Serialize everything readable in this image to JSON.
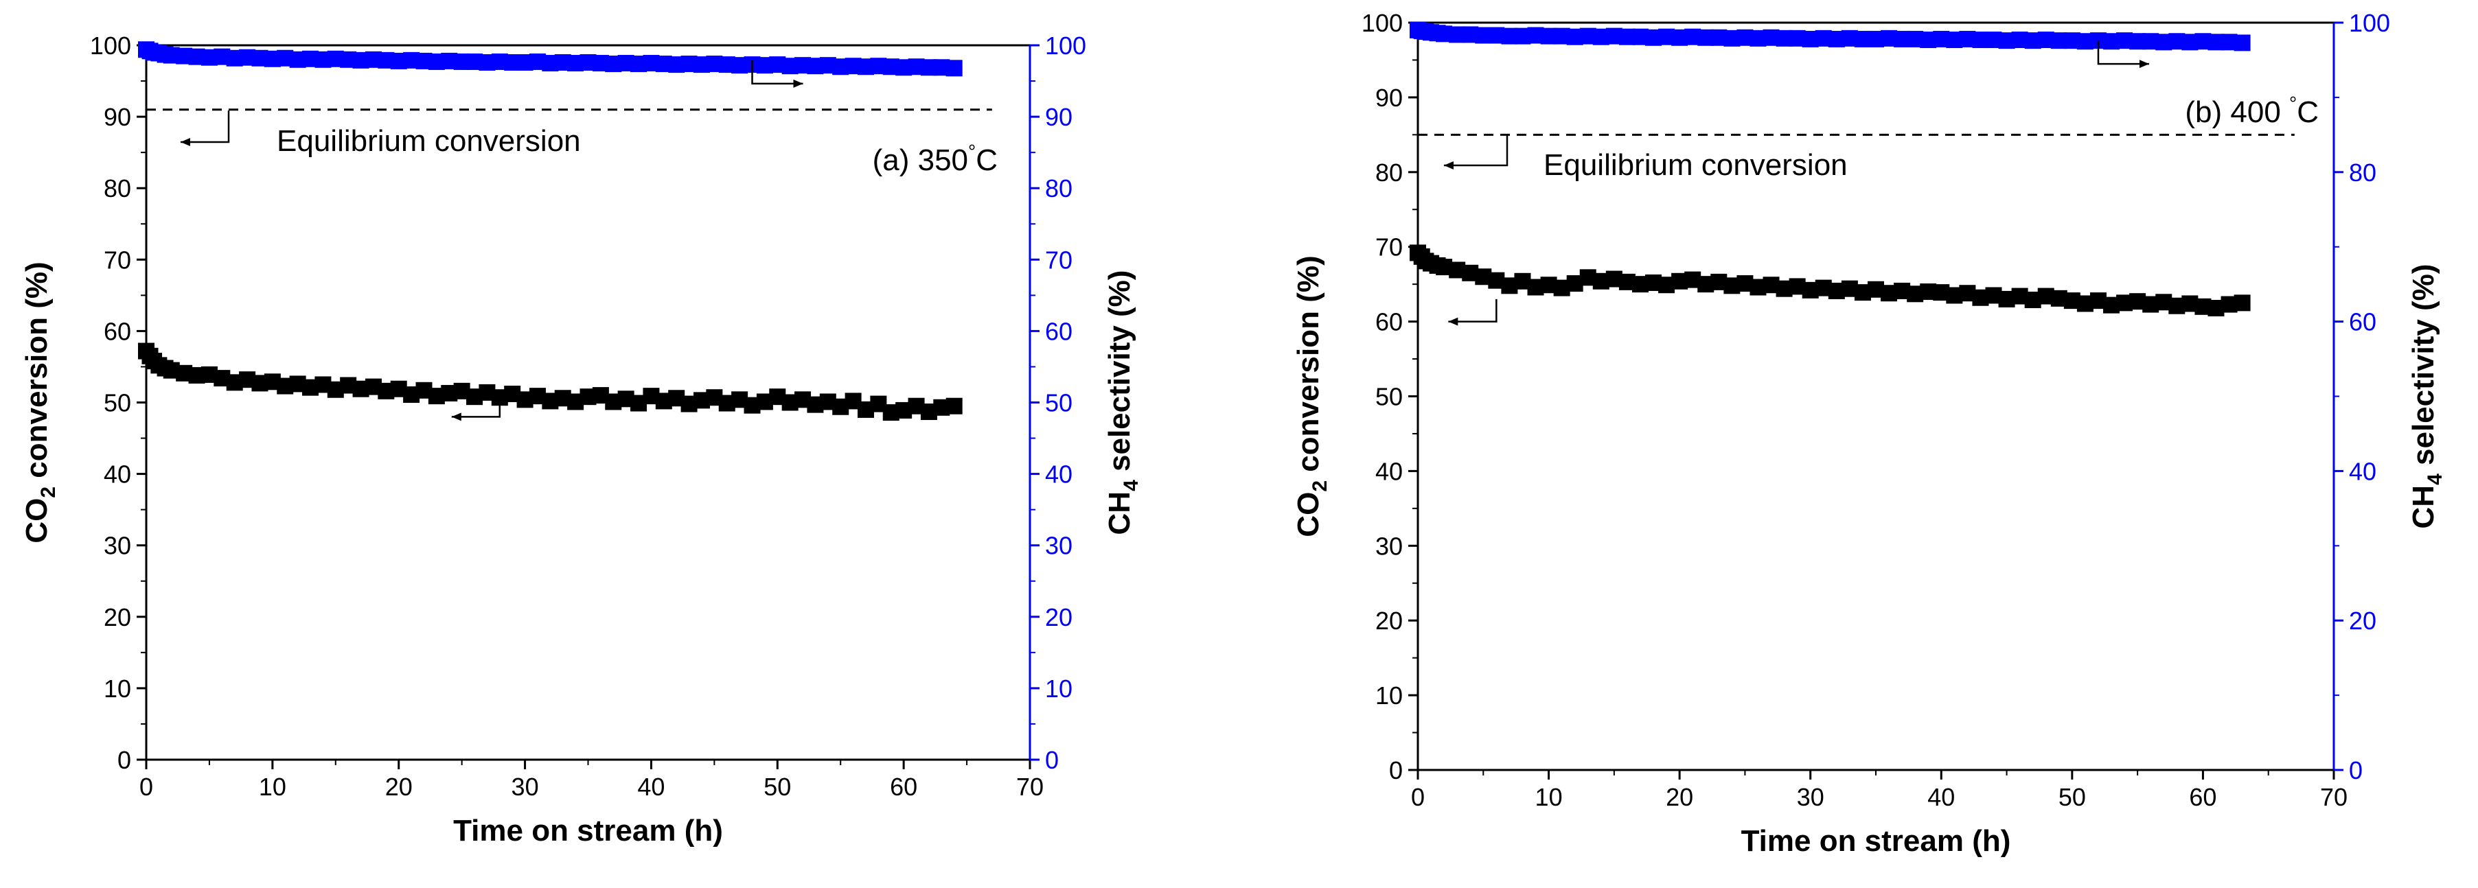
{
  "chart_data": [
    {
      "id": "a",
      "type": "scatter",
      "annotation": "(a) 350",
      "annotation_unit": "°C",
      "xlabel": "Time on stream (h)",
      "ylabel_left": {
        "prefix": "CO",
        "sub": "2",
        "suffix": " conversion (%)"
      },
      "ylabel_right": {
        "prefix": "CH",
        "sub": "4",
        "suffix": " selectivity (%)"
      },
      "xlim": [
        0,
        70
      ],
      "ylim_left": [
        0,
        100
      ],
      "ylim_right": [
        0,
        100
      ],
      "x_ticks": [
        0,
        10,
        20,
        30,
        40,
        50,
        60,
        70
      ],
      "y_ticks_left": [
        0,
        10,
        20,
        30,
        40,
        50,
        60,
        70,
        80,
        90,
        100
      ],
      "y_ticks_right": [
        0,
        10,
        20,
        30,
        40,
        50,
        60,
        70,
        80,
        90,
        100
      ],
      "equilibrium": {
        "label": "Equilibrium conversion",
        "value": 91,
        "x_range": [
          0,
          67
        ]
      },
      "series": [
        {
          "name": "CO2 conversion",
          "axis": "left",
          "color": "#000000",
          "x": [
            0,
            0.3,
            0.6,
            1,
            1.5,
            2,
            3,
            4,
            5,
            6,
            7,
            8,
            9,
            10,
            11,
            12,
            13,
            14,
            15,
            16,
            17,
            18,
            19,
            20,
            21,
            22,
            23,
            24,
            25,
            26,
            27,
            28,
            29,
            30,
            31,
            32,
            33,
            34,
            35,
            36,
            37,
            38,
            39,
            40,
            41,
            42,
            43,
            44,
            45,
            46,
            47,
            48,
            49,
            50,
            51,
            52,
            53,
            54,
            55,
            56,
            57,
            58,
            59,
            60,
            61,
            62,
            63,
            64
          ],
          "y": [
            57.2,
            56.5,
            55.8,
            55.2,
            54.8,
            54.5,
            54.1,
            53.8,
            53.9,
            53.4,
            52.8,
            53.2,
            52.7,
            52.9,
            52.3,
            52.6,
            52.1,
            52.5,
            51.8,
            52.4,
            51.9,
            52.2,
            51.6,
            51.9,
            51.1,
            51.7,
            50.9,
            51.3,
            51.6,
            50.8,
            51.4,
            50.7,
            51.2,
            50.4,
            50.9,
            50.2,
            50.6,
            50.1,
            50.8,
            51.0,
            50.1,
            50.5,
            49.9,
            50.9,
            50.2,
            50.6,
            49.8,
            50.3,
            50.7,
            49.9,
            50.4,
            49.6,
            50.1,
            50.8,
            50.0,
            50.4,
            49.7,
            50.1,
            49.4,
            50.2,
            49.0,
            49.8,
            48.6,
            48.9,
            49.5,
            48.7,
            49.3,
            49.5
          ]
        },
        {
          "name": "CH4 selectivity",
          "axis": "right",
          "color": "#0000ff",
          "x": [
            0,
            0.3,
            0.6,
            1,
            1.5,
            2,
            3,
            4,
            5,
            6,
            7,
            8,
            9,
            10,
            11,
            12,
            13,
            14,
            15,
            16,
            17,
            18,
            19,
            20,
            21,
            22,
            23,
            24,
            25,
            26,
            27,
            28,
            29,
            30,
            31,
            32,
            33,
            34,
            35,
            36,
            37,
            38,
            39,
            40,
            41,
            42,
            43,
            44,
            45,
            46,
            47,
            48,
            49,
            50,
            51,
            52,
            53,
            54,
            55,
            56,
            57,
            58,
            59,
            60,
            61,
            62,
            63,
            64
          ],
          "y": [
            99.4,
            99.2,
            99.0,
            98.9,
            98.7,
            98.6,
            98.5,
            98.4,
            98.3,
            98.4,
            98.2,
            98.3,
            98.2,
            98.1,
            98.2,
            98.0,
            98.1,
            98.0,
            98.1,
            98.0,
            97.9,
            98.0,
            97.9,
            97.8,
            97.9,
            97.8,
            97.7,
            97.8,
            97.7,
            97.7,
            97.6,
            97.7,
            97.6,
            97.6,
            97.7,
            97.5,
            97.6,
            97.5,
            97.6,
            97.5,
            97.4,
            97.5,
            97.4,
            97.5,
            97.4,
            97.3,
            97.4,
            97.3,
            97.4,
            97.3,
            97.2,
            97.3,
            97.2,
            97.3,
            97.1,
            97.2,
            97.1,
            97.2,
            97.0,
            97.1,
            97.0,
            97.1,
            97.0,
            96.9,
            97.0,
            96.9,
            96.9,
            96.8
          ]
        }
      ]
    },
    {
      "id": "b",
      "type": "scatter",
      "annotation": "(b) 400 ",
      "annotation_unit": "°C",
      "xlabel": "Time on stream (h)",
      "ylabel_left": {
        "prefix": "CO",
        "sub": "2",
        "suffix": " conversion (%)"
      },
      "ylabel_right": {
        "prefix": "CH",
        "sub": "4",
        "suffix": " selectivity (%)"
      },
      "xlim": [
        0,
        70
      ],
      "ylim_left": [
        0,
        100
      ],
      "ylim_right": [
        0,
        100
      ],
      "x_ticks": [
        0,
        10,
        20,
        30,
        40,
        50,
        60,
        70
      ],
      "y_ticks_left": [
        0,
        10,
        20,
        30,
        40,
        50,
        60,
        70,
        80,
        90,
        100
      ],
      "y_ticks_right": [
        0,
        20,
        40,
        60,
        80,
        100
      ],
      "equilibrium": {
        "label": "Equilibrium conversion",
        "value": 85,
        "x_range": [
          0,
          67
        ]
      },
      "series": [
        {
          "name": "CO2 conversion",
          "axis": "left",
          "color": "#000000",
          "x": [
            0,
            0.3,
            0.6,
            1,
            1.5,
            2,
            3,
            4,
            5,
            6,
            7,
            8,
            9,
            10,
            11,
            12,
            13,
            14,
            15,
            16,
            17,
            18,
            19,
            20,
            21,
            22,
            23,
            24,
            25,
            26,
            27,
            28,
            29,
            30,
            31,
            32,
            33,
            34,
            35,
            36,
            37,
            38,
            39,
            40,
            41,
            42,
            43,
            44,
            45,
            46,
            47,
            48,
            49,
            50,
            51,
            52,
            53,
            54,
            55,
            56,
            57,
            58,
            59,
            60,
            61,
            62,
            63
          ],
          "y": [
            69.2,
            68.7,
            68.1,
            67.8,
            67.5,
            67.3,
            66.9,
            66.5,
            66.0,
            65.5,
            64.8,
            65.4,
            64.6,
            64.9,
            64.5,
            65.1,
            65.9,
            65.4,
            65.7,
            65.3,
            65.0,
            65.2,
            64.9,
            65.4,
            65.6,
            65.0,
            65.3,
            64.8,
            65.1,
            64.6,
            64.9,
            64.4,
            64.7,
            64.2,
            64.5,
            64.1,
            64.4,
            63.9,
            64.3,
            63.8,
            64.1,
            63.7,
            64.0,
            63.9,
            63.5,
            63.8,
            63.2,
            63.5,
            63.0,
            63.4,
            62.9,
            63.4,
            63.1,
            62.8,
            62.4,
            62.8,
            62.2,
            62.5,
            62.7,
            62.3,
            62.6,
            62.1,
            62.4,
            62.0,
            61.8,
            62.3,
            62.5
          ]
        },
        {
          "name": "CH4 selectivity",
          "axis": "right",
          "color": "#0000ff",
          "x": [
            0,
            0.3,
            0.6,
            1,
            1.5,
            2,
            3,
            4,
            5,
            6,
            7,
            8,
            9,
            10,
            11,
            12,
            13,
            14,
            15,
            16,
            17,
            18,
            19,
            20,
            21,
            22,
            23,
            24,
            25,
            26,
            27,
            28,
            29,
            30,
            31,
            32,
            33,
            34,
            35,
            36,
            37,
            38,
            39,
            40,
            41,
            42,
            43,
            44,
            45,
            46,
            47,
            48,
            49,
            50,
            51,
            52,
            53,
            54,
            55,
            56,
            57,
            58,
            59,
            60,
            61,
            62,
            63
          ],
          "y": [
            99.0,
            98.9,
            98.8,
            98.7,
            98.6,
            98.5,
            98.4,
            98.4,
            98.3,
            98.3,
            98.2,
            98.2,
            98.3,
            98.2,
            98.2,
            98.1,
            98.2,
            98.1,
            98.2,
            98.1,
            98.1,
            98.0,
            98.1,
            98.0,
            98.1,
            98.0,
            98.0,
            97.9,
            98.0,
            97.9,
            98.0,
            97.9,
            97.9,
            97.8,
            97.9,
            97.8,
            97.9,
            97.8,
            97.8,
            97.9,
            97.8,
            97.8,
            97.7,
            97.8,
            97.7,
            97.8,
            97.7,
            97.7,
            97.6,
            97.7,
            97.6,
            97.7,
            97.6,
            97.6,
            97.5,
            97.6,
            97.5,
            97.6,
            97.5,
            97.5,
            97.4,
            97.5,
            97.4,
            97.5,
            97.4,
            97.4,
            97.3
          ]
        }
      ]
    }
  ]
}
